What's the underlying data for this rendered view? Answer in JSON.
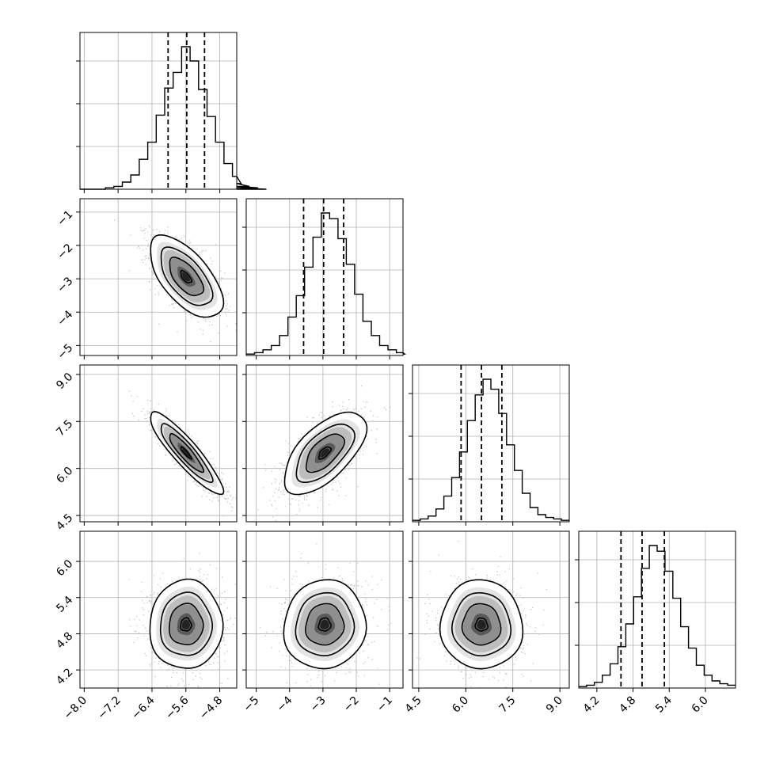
{
  "chart_data": {
    "type": "corner",
    "n_params": 4,
    "grid": true,
    "params": [
      {
        "index": 0,
        "range": [
          -8.1,
          -4.4
        ],
        "ticks": [
          -8.0,
          -7.2,
          -6.4,
          -5.6,
          -4.8
        ],
        "tick_labels": [
          "−8.0",
          "−7.2",
          "−6.4",
          "−5.6",
          "−4.8"
        ],
        "quantiles": [
          -6.02,
          -5.58,
          -5.16
        ],
        "mean": -5.6,
        "sd": 0.42
      },
      {
        "index": 1,
        "range": [
          -5.3,
          -0.6
        ],
        "ticks": [
          -5,
          -4,
          -3,
          -2,
          -1
        ],
        "tick_labels": [
          "−5",
          "−4",
          "−3",
          "−2",
          "−1"
        ],
        "quantiles": [
          -3.58,
          -2.98,
          -2.38
        ],
        "mean": -2.95,
        "sd": 0.6
      },
      {
        "index": 2,
        "range": [
          4.3,
          9.3
        ],
        "ticks": [
          4.5,
          6.0,
          7.5,
          9.0
        ],
        "tick_labels": [
          "4.5",
          "6.0",
          "7.5",
          "9.0"
        ],
        "quantiles": [
          5.85,
          6.5,
          7.15
        ],
        "mean": 6.5,
        "sd": 0.64
      },
      {
        "index": 3,
        "range": [
          3.9,
          6.5
        ],
        "ticks": [
          4.2,
          4.8,
          5.4,
          6.0
        ],
        "tick_labels": [
          "4.2",
          "4.8",
          "5.4",
          "6.0"
        ],
        "quantiles": [
          4.6,
          4.95,
          5.32
        ],
        "mean": 4.95,
        "sd": 0.36
      }
    ],
    "correlations": {
      "1-0": -0.62,
      "2-0": -0.9,
      "2-1": 0.62,
      "3-0": 0.02,
      "3-1": 0.05,
      "3-2": -0.02
    },
    "histograms": [
      {
        "param": 0,
        "edges_start": -8.1,
        "bin_width": 0.2,
        "counts": [
          0,
          0,
          0,
          1,
          2,
          5,
          10,
          21,
          33,
          52,
          71,
          82,
          100,
          90,
          70,
          51,
          33,
          18,
          9,
          4,
          2,
          1,
          0
        ]
      },
      {
        "param": 1,
        "edges_start": -5.3,
        "bin_width": 0.25,
        "counts": [
          1,
          2,
          4,
          7,
          14,
          27,
          42,
          62,
          83,
          100,
          96,
          82,
          64,
          43,
          24,
          14,
          7,
          4,
          2,
          1
        ]
      },
      {
        "param": 2,
        "edges_start": 4.3,
        "bin_width": 0.25,
        "counts": [
          1,
          2,
          4,
          9,
          18,
          31,
          49,
          71,
          89,
          100,
          93,
          76,
          54,
          36,
          20,
          10,
          5,
          3,
          2,
          1
        ]
      },
      {
        "param": 3,
        "edges_start": 3.9,
        "bin_width": 0.13,
        "counts": [
          1,
          2,
          4,
          9,
          17,
          29,
          45,
          64,
          84,
          100,
          96,
          82,
          63,
          43,
          28,
          16,
          9,
          5,
          3,
          2
        ]
      }
    ]
  }
}
